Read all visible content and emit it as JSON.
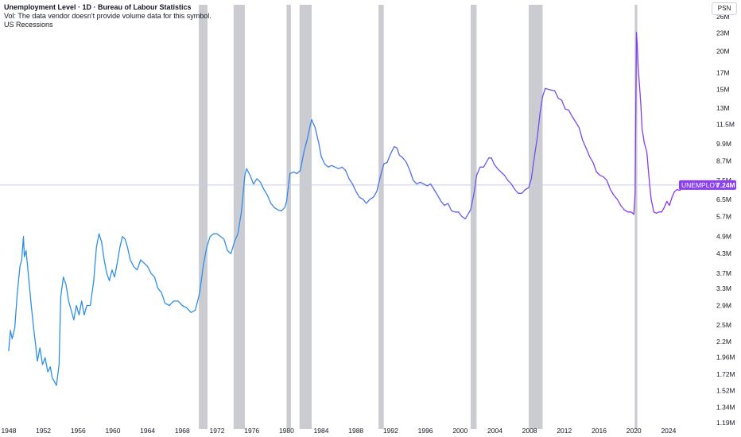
{
  "legend": {
    "title": "Unemployment Level · 1D · Bureau of Labour Statistics",
    "volume_note": "Vol: The data vendor doesn't provide volume data for this symbol.",
    "recessions": "US Recessions"
  },
  "scale_button": "PSN",
  "colors": {
    "line_start": "#2f8fe6",
    "line_end": "#8c35f0",
    "recession": "#c4c6cc",
    "label_bg": "#8b3ff2",
    "crosshair": "#c9cbe9"
  },
  "chart_data": {
    "type": "line",
    "title": "Unemployment Level",
    "symbol": "UNEMPLOY",
    "last_value": 7.24,
    "last_value_label": "7.24M",
    "y_scale": "log",
    "ylim": [
      1.19,
      28.5
    ],
    "xlim": [
      1947.0,
      2028.5
    ],
    "y_ticks": [
      {
        "v": 1.19,
        "label": "1.19M"
      },
      {
        "v": 1.34,
        "label": "1.34M"
      },
      {
        "v": 1.52,
        "label": "1.52M"
      },
      {
        "v": 1.72,
        "label": "1.72M"
      },
      {
        "v": 1.96,
        "label": "1.96M"
      },
      {
        "v": 2.2,
        "label": "2.2M"
      },
      {
        "v": 2.5,
        "label": "2.5M"
      },
      {
        "v": 2.9,
        "label": "2.9M"
      },
      {
        "v": 3.3,
        "label": "3.3M"
      },
      {
        "v": 3.7,
        "label": "3.7M"
      },
      {
        "v": 4.3,
        "label": "4.3M"
      },
      {
        "v": 4.9,
        "label": "4.9M"
      },
      {
        "v": 5.7,
        "label": "5.7M"
      },
      {
        "v": 6.5,
        "label": "6.5M"
      },
      {
        "v": 7.5,
        "label": "7.5M"
      },
      {
        "v": 8.7,
        "label": "8.7M"
      },
      {
        "v": 9.9,
        "label": "9.9M"
      },
      {
        "v": 11.5,
        "label": "11.5M"
      },
      {
        "v": 13,
        "label": "13M"
      },
      {
        "v": 15,
        "label": "15M"
      },
      {
        "v": 17,
        "label": "17M"
      },
      {
        "v": 20,
        "label": "20M"
      },
      {
        "v": 23,
        "label": "23M"
      },
      {
        "v": 26,
        "label": "26M"
      }
    ],
    "x_ticks": [
      "1948",
      "1952",
      "1956",
      "1960",
      "1964",
      "1968",
      "1972",
      "1976",
      "1980",
      "1984",
      "1988",
      "1992",
      "1996",
      "2000",
      "2004",
      "2008",
      "2012",
      "2016",
      "2020",
      "2024"
    ],
    "recessions": [
      [
        1969.9,
        1970.9
      ],
      [
        1973.9,
        1975.2
      ],
      [
        1980.0,
        1980.5
      ],
      [
        1981.5,
        1982.9
      ],
      [
        1990.6,
        1991.2
      ],
      [
        2001.2,
        2001.9
      ],
      [
        2007.9,
        2009.5
      ],
      [
        2020.1,
        2020.4
      ]
    ],
    "series": [
      {
        "values": [
          [
            1948.0,
            2.05
          ],
          [
            1948.2,
            2.4
          ],
          [
            1948.4,
            2.25
          ],
          [
            1948.7,
            2.45
          ],
          [
            1949.0,
            3.2
          ],
          [
            1949.3,
            3.9
          ],
          [
            1949.5,
            4.1
          ],
          [
            1949.7,
            4.9
          ],
          [
            1949.8,
            4.2
          ],
          [
            1950.0,
            4.4
          ],
          [
            1950.3,
            3.6
          ],
          [
            1950.6,
            2.9
          ],
          [
            1950.9,
            2.4
          ],
          [
            1951.1,
            2.15
          ],
          [
            1951.3,
            1.9
          ],
          [
            1951.6,
            2.1
          ],
          [
            1951.9,
            1.85
          ],
          [
            1952.2,
            1.95
          ],
          [
            1952.5,
            1.75
          ],
          [
            1952.8,
            1.82
          ],
          [
            1953.0,
            1.68
          ],
          [
            1953.3,
            1.62
          ],
          [
            1953.5,
            1.58
          ],
          [
            1953.8,
            1.85
          ],
          [
            1954.0,
            3.1
          ],
          [
            1954.3,
            3.6
          ],
          [
            1954.6,
            3.4
          ],
          [
            1954.9,
            3.0
          ],
          [
            1955.2,
            2.8
          ],
          [
            1955.5,
            2.6
          ],
          [
            1955.8,
            2.9
          ],
          [
            1956.1,
            2.7
          ],
          [
            1956.4,
            3.0
          ],
          [
            1956.7,
            2.7
          ],
          [
            1957.0,
            2.9
          ],
          [
            1957.4,
            2.9
          ],
          [
            1957.8,
            3.5
          ],
          [
            1958.1,
            4.5
          ],
          [
            1958.4,
            5.0
          ],
          [
            1958.7,
            4.7
          ],
          [
            1959.0,
            4.1
          ],
          [
            1959.3,
            3.7
          ],
          [
            1959.6,
            3.5
          ],
          [
            1959.9,
            3.8
          ],
          [
            1960.2,
            3.6
          ],
          [
            1960.5,
            4.0
          ],
          [
            1960.8,
            4.5
          ],
          [
            1961.1,
            4.9
          ],
          [
            1961.4,
            4.8
          ],
          [
            1961.7,
            4.5
          ],
          [
            1962.0,
            4.1
          ],
          [
            1962.4,
            3.9
          ],
          [
            1962.8,
            3.8
          ],
          [
            1963.2,
            4.1
          ],
          [
            1963.6,
            4.0
          ],
          [
            1964.0,
            3.9
          ],
          [
            1964.4,
            3.7
          ],
          [
            1964.8,
            3.6
          ],
          [
            1965.2,
            3.3
          ],
          [
            1965.6,
            3.2
          ],
          [
            1966.0,
            2.95
          ],
          [
            1966.5,
            2.9
          ],
          [
            1967.0,
            3.0
          ],
          [
            1967.5,
            3.0
          ],
          [
            1968.0,
            2.9
          ],
          [
            1968.5,
            2.85
          ],
          [
            1969.0,
            2.75
          ],
          [
            1969.5,
            2.8
          ],
          [
            1970.0,
            3.2
          ],
          [
            1970.4,
            3.9
          ],
          [
            1970.8,
            4.5
          ],
          [
            1971.2,
            4.9
          ],
          [
            1971.6,
            5.0
          ],
          [
            1972.0,
            5.0
          ],
          [
            1972.4,
            4.9
          ],
          [
            1972.8,
            4.8
          ],
          [
            1973.2,
            4.4
          ],
          [
            1973.6,
            4.3
          ],
          [
            1974.0,
            4.7
          ],
          [
            1974.4,
            5.0
          ],
          [
            1974.8,
            5.9
          ],
          [
            1975.2,
            7.8
          ],
          [
            1975.4,
            8.2
          ],
          [
            1975.8,
            7.8
          ],
          [
            1976.2,
            7.3
          ],
          [
            1976.6,
            7.6
          ],
          [
            1977.0,
            7.4
          ],
          [
            1977.4,
            7.0
          ],
          [
            1977.8,
            6.7
          ],
          [
            1978.2,
            6.3
          ],
          [
            1978.6,
            6.1
          ],
          [
            1979.0,
            6.0
          ],
          [
            1979.4,
            5.95
          ],
          [
            1979.8,
            6.1
          ],
          [
            1980.0,
            6.4
          ],
          [
            1980.4,
            7.9
          ],
          [
            1980.8,
            8.0
          ],
          [
            1981.2,
            7.9
          ],
          [
            1981.6,
            8.1
          ],
          [
            1982.0,
            9.3
          ],
          [
            1982.4,
            10.3
          ],
          [
            1982.7,
            11.3
          ],
          [
            1982.9,
            11.9
          ],
          [
            1983.3,
            11.2
          ],
          [
            1983.7,
            10.0
          ],
          [
            1984.0,
            9.0
          ],
          [
            1984.4,
            8.5
          ],
          [
            1984.8,
            8.3
          ],
          [
            1985.2,
            8.4
          ],
          [
            1985.6,
            8.3
          ],
          [
            1986.0,
            8.2
          ],
          [
            1986.4,
            8.3
          ],
          [
            1986.8,
            8.1
          ],
          [
            1987.2,
            7.6
          ],
          [
            1987.6,
            7.3
          ],
          [
            1988.0,
            6.9
          ],
          [
            1988.4,
            6.6
          ],
          [
            1988.8,
            6.5
          ],
          [
            1989.2,
            6.3
          ],
          [
            1989.6,
            6.5
          ],
          [
            1990.0,
            6.6
          ],
          [
            1990.4,
            6.9
          ],
          [
            1990.8,
            7.7
          ],
          [
            1991.2,
            8.5
          ],
          [
            1991.6,
            8.6
          ],
          [
            1992.0,
            9.2
          ],
          [
            1992.4,
            9.7
          ],
          [
            1992.7,
            9.6
          ],
          [
            1993.0,
            9.1
          ],
          [
            1993.4,
            8.9
          ],
          [
            1993.8,
            8.6
          ],
          [
            1994.2,
            8.1
          ],
          [
            1994.6,
            7.5
          ],
          [
            1995.0,
            7.3
          ],
          [
            1995.4,
            7.4
          ],
          [
            1995.8,
            7.3
          ],
          [
            1996.2,
            7.2
          ],
          [
            1996.6,
            7.3
          ],
          [
            1997.0,
            7.0
          ],
          [
            1997.4,
            6.7
          ],
          [
            1997.8,
            6.4
          ],
          [
            1998.2,
            6.2
          ],
          [
            1998.6,
            6.3
          ],
          [
            1999.0,
            5.95
          ],
          [
            1999.4,
            5.9
          ],
          [
            1999.8,
            5.9
          ],
          [
            2000.2,
            5.7
          ],
          [
            2000.6,
            5.6
          ],
          [
            2000.9,
            5.8
          ],
          [
            2001.2,
            6.0
          ],
          [
            2001.6,
            6.8
          ],
          [
            2001.9,
            7.8
          ],
          [
            2002.3,
            8.3
          ],
          [
            2002.7,
            8.3
          ],
          [
            2003.0,
            8.6
          ],
          [
            2003.3,
            8.9
          ],
          [
            2003.6,
            8.9
          ],
          [
            2003.9,
            8.5
          ],
          [
            2004.3,
            8.2
          ],
          [
            2004.7,
            8.0
          ],
          [
            2005.1,
            7.8
          ],
          [
            2005.5,
            7.5
          ],
          [
            2005.9,
            7.3
          ],
          [
            2006.3,
            7.0
          ],
          [
            2006.7,
            6.8
          ],
          [
            2007.1,
            6.8
          ],
          [
            2007.5,
            7.0
          ],
          [
            2007.9,
            7.1
          ],
          [
            2008.2,
            7.6
          ],
          [
            2008.6,
            9.2
          ],
          [
            2008.9,
            10.5
          ],
          [
            2009.2,
            12.5
          ],
          [
            2009.5,
            14.2
          ],
          [
            2009.8,
            15.1
          ],
          [
            2010.1,
            15.0
          ],
          [
            2010.5,
            14.9
          ],
          [
            2010.9,
            14.8
          ],
          [
            2011.3,
            14.0
          ],
          [
            2011.7,
            13.8
          ],
          [
            2012.1,
            12.9
          ],
          [
            2012.5,
            12.8
          ],
          [
            2012.9,
            12.2
          ],
          [
            2013.3,
            11.7
          ],
          [
            2013.7,
            11.2
          ],
          [
            2014.1,
            10.2
          ],
          [
            2014.5,
            9.6
          ],
          [
            2014.9,
            9.0
          ],
          [
            2015.3,
            8.6
          ],
          [
            2015.7,
            8.0
          ],
          [
            2016.1,
            7.8
          ],
          [
            2016.5,
            7.7
          ],
          [
            2016.9,
            7.5
          ],
          [
            2017.3,
            7.0
          ],
          [
            2017.7,
            6.7
          ],
          [
            2018.1,
            6.5
          ],
          [
            2018.5,
            6.2
          ],
          [
            2018.9,
            6.0
          ],
          [
            2019.3,
            5.9
          ],
          [
            2019.7,
            5.9
          ],
          [
            2020.0,
            5.8
          ],
          [
            2020.15,
            6.8
          ],
          [
            2020.3,
            23.1
          ],
          [
            2020.4,
            21.0
          ],
          [
            2020.5,
            17.8
          ],
          [
            2020.6,
            16.3
          ],
          [
            2020.8,
            13.5
          ],
          [
            2020.95,
            11.1
          ],
          [
            2021.2,
            10.0
          ],
          [
            2021.5,
            9.3
          ],
          [
            2021.8,
            7.4
          ],
          [
            2022.0,
            6.5
          ],
          [
            2022.3,
            5.9
          ],
          [
            2022.6,
            5.85
          ],
          [
            2022.9,
            5.9
          ],
          [
            2023.2,
            5.9
          ],
          [
            2023.5,
            6.1
          ],
          [
            2023.8,
            6.4
          ],
          [
            2024.1,
            6.2
          ],
          [
            2024.4,
            6.6
          ],
          [
            2024.7,
            6.9
          ],
          [
            2025.0,
            7.0
          ],
          [
            2025.3,
            6.95
          ],
          [
            2025.6,
            7.2
          ],
          [
            2025.9,
            7.24
          ]
        ]
      }
    ]
  }
}
